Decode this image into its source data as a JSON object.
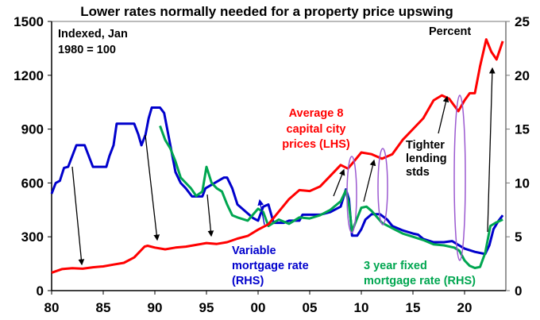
{
  "chart_data": {
    "type": "line",
    "title": "Lower rates normally needed for a property price upswing",
    "left_axis": {
      "note": [
        "Indexed, Jan",
        "1980 = 100"
      ],
      "ticks": [
        0,
        300,
        600,
        900,
        1200,
        1500
      ],
      "range": [
        0,
        1500
      ]
    },
    "right_axis": {
      "note": "Percent",
      "ticks": [
        0,
        5,
        10,
        15,
        20,
        25
      ],
      "range": [
        0,
        25
      ]
    },
    "x_axis": {
      "ticks": [
        1980,
        1985,
        1990,
        1995,
        2000,
        2005,
        2010,
        2015,
        2020
      ],
      "tick_labels": [
        "80",
        "85",
        "90",
        "95",
        "00",
        "05",
        "10",
        "15",
        "20"
      ],
      "range": [
        1980,
        2024
      ]
    },
    "series": [
      {
        "name": "Average 8 capital city prices (LHS)",
        "label": [
          "Average 8",
          "capital city",
          "prices (LHS)"
        ],
        "axis": "left",
        "color": "#ff0000",
        "x": [
          1980,
          1981,
          1982,
          1983,
          1984,
          1985,
          1986,
          1987,
          1988,
          1989,
          1989.3,
          1990,
          1991,
          1992,
          1993,
          1994,
          1995,
          1996,
          1997,
          1998,
          1999,
          2000,
          2001,
          2002,
          2003,
          2004,
          2005,
          2006,
          2007,
          2008,
          2008.7,
          2009,
          2010,
          2011,
          2012,
          2013,
          2014,
          2015,
          2016,
          2017,
          2017.8,
          2018.5,
          2019.4,
          2020,
          2020.5,
          2021,
          2021.5,
          2022.1,
          2022.6,
          2023.1,
          2023.7
        ],
        "y": [
          100,
          120,
          125,
          122,
          130,
          135,
          145,
          155,
          185,
          245,
          250,
          240,
          230,
          240,
          245,
          255,
          265,
          260,
          270,
          290,
          305,
          340,
          370,
          440,
          510,
          560,
          555,
          580,
          640,
          700,
          680,
          700,
          770,
          760,
          735,
          760,
          840,
          900,
          960,
          1060,
          1088,
          1070,
          1000,
          1060,
          1100,
          1100,
          1250,
          1400,
          1330,
          1288,
          1390
        ]
      },
      {
        "name": "Variable mortgage rate (RHS)",
        "label": [
          "Variable",
          "mortgage rate",
          "(RHS)"
        ],
        "axis": "right",
        "color": "#0000cc",
        "x": [
          1980,
          1980.4,
          1980.8,
          1981.2,
          1981.6,
          1982,
          1982.4,
          1983.2,
          1983.6,
          1984,
          1985.3,
          1985.6,
          1986,
          1986.3,
          1988,
          1988.4,
          1988.7,
          1989.1,
          1989.4,
          1989.7,
          1990.5,
          1990.9,
          1991.2,
          1991.6,
          1992,
          1992.5,
          1993,
          1993.6,
          1994,
          1994.6,
          1994.9,
          1996.7,
          1997,
          1997.5,
          1998,
          1999.5,
          2000,
          2000.5,
          2001,
          2001.5,
          2002.5,
          2003,
          2004,
          2004.3,
          2006,
          2007,
          2008,
          2008.5,
          2008.8,
          2009.1,
          2009.6,
          2010,
          2010.4,
          2011,
          2011.8,
          2012.5,
          2013,
          2014,
          2015,
          2015.5,
          2016,
          2017,
          2018,
          2018.8,
          2019.3,
          2020,
          2021,
          2022,
          2022.4,
          2022.8,
          2023.3,
          2023.7
        ],
        "y": [
          9,
          10,
          10.2,
          11.4,
          11.5,
          12.5,
          13.5,
          13.5,
          12.5,
          11.5,
          11.5,
          12.5,
          13.5,
          15.5,
          15.5,
          14.5,
          13.5,
          14.5,
          16,
          17,
          17,
          16.5,
          15,
          13,
          11,
          10,
          9.5,
          8.75,
          8.75,
          8.75,
          9.5,
          10.5,
          10.5,
          9.5,
          8,
          6.75,
          6.5,
          7.8,
          8,
          6.3,
          6.3,
          6.5,
          6.5,
          7.05,
          7.05,
          7.3,
          7.8,
          9.4,
          8.5,
          5.1,
          5.1,
          5.7,
          6.6,
          7.1,
          7.1,
          6.6,
          6.0,
          5.6,
          5.3,
          5.2,
          4.8,
          4.5,
          4.5,
          4.6,
          4.3,
          3.9,
          3.6,
          3.4,
          4.2,
          5.7,
          6.5,
          7.0
        ]
      },
      {
        "name": "3 year fixed mortgage rate (RHS)",
        "label": [
          "3 year fixed",
          "mortgage rate (RHS)"
        ],
        "axis": "right",
        "color": "#00a650",
        "x": [
          1990.5,
          1991,
          1991.5,
          1992,
          1992.5,
          1993,
          1993.5,
          1994,
          1994.6,
          1995,
          1995.5,
          1996,
          1996.5,
          1997,
          1997.5,
          1998,
          1999,
          2000,
          2000.5,
          2001,
          2002,
          2003,
          2004,
          2005,
          2006,
          2007,
          2008,
          2008.5,
          2008.8,
          2009.1,
          2009.5,
          2010,
          2010.5,
          2011,
          2012,
          2013,
          2014,
          2015,
          2016,
          2017,
          2018,
          2019,
          2019.5,
          2020,
          2020.5,
          2021,
          2021.5,
          2022,
          2022.5,
          2023,
          2023.7
        ],
        "y": [
          15.3,
          14,
          13.2,
          12,
          10.5,
          10,
          9.5,
          8.8,
          9.2,
          11.5,
          10,
          9.5,
          9.2,
          8,
          7,
          6.8,
          6.5,
          7.6,
          7.3,
          6,
          6.6,
          6.2,
          6.8,
          6.7,
          7,
          7.5,
          8.3,
          9.3,
          8,
          5.5,
          6.5,
          7.7,
          7.8,
          7.4,
          6.3,
          5.8,
          5.3,
          5,
          4.7,
          4.3,
          4.2,
          4,
          3.7,
          2.8,
          2.3,
          2.1,
          2.2,
          3.5,
          6,
          6.3,
          6.6
        ]
      }
    ],
    "annotations": [
      "Tighter",
      "lending",
      "stds"
    ]
  }
}
